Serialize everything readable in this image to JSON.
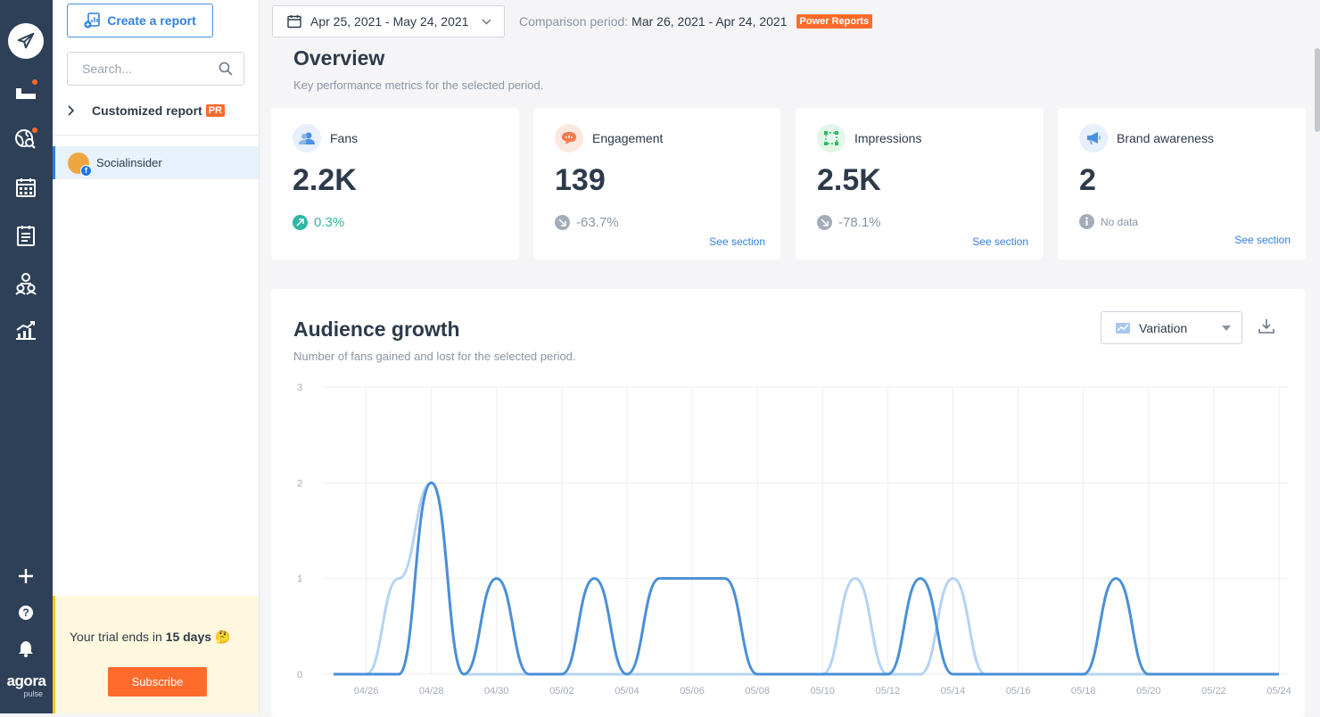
{
  "sidebar": {
    "create_label": "Create a report",
    "search_placeholder": "Search...",
    "customized_label": "Customized report",
    "pr_badge": "PR",
    "profile_name": "Socialinsider",
    "trial_prefix": "Your trial ends in ",
    "trial_days": "15 days",
    "trial_emoji": "🤔",
    "subscribe_label": "Subscribe"
  },
  "rail": {
    "icons": [
      "send-icon",
      "inbox-icon",
      "listening-icon",
      "calendar-icon",
      "reports-list-icon",
      "team-icon",
      "analytics-icon",
      "plus-icon",
      "help-icon",
      "bell-icon"
    ],
    "logo_top": "agora",
    "logo_bottom": "pulse"
  },
  "topbar": {
    "date_range": "Apr 25, 2021 - May 24, 2021",
    "comparison_label": "Comparison period:",
    "comparison_value": "Mar 26, 2021 - Apr 24, 2021",
    "power_badge": "Power Reports"
  },
  "overview": {
    "title": "Overview",
    "subtitle": "Key performance metrics for the selected period.",
    "cards": [
      {
        "label": "Fans",
        "value": "2.2K",
        "change": "0.3%",
        "trend": "up",
        "see": "",
        "color": "#4a8fe2"
      },
      {
        "label": "Engagement",
        "value": "139",
        "change": "-63.7%",
        "trend": "down",
        "see": "See section",
        "color": "#f5794a"
      },
      {
        "label": "Impressions",
        "value": "2.5K",
        "change": "-78.1%",
        "trend": "down",
        "see": "See section",
        "color": "#2fba5f"
      },
      {
        "label": "Brand awareness",
        "value": "2",
        "change": "No data",
        "trend": "none",
        "see": "See section",
        "color": "#4a8fe2"
      }
    ]
  },
  "audience": {
    "title": "Audience growth",
    "subtitle": "Number of fans gained and lost for the selected period.",
    "variation_label": "Variation"
  },
  "chart_data": {
    "type": "line",
    "title": "Audience growth",
    "ylim": [
      0,
      3
    ],
    "yticks": [
      "0",
      "1",
      "2",
      "3"
    ],
    "x_tick_labels": [
      "04/26",
      "04/28",
      "04/30",
      "05/02",
      "05/04",
      "05/06",
      "05/08",
      "05/10",
      "05/12",
      "05/14",
      "05/16",
      "05/18",
      "05/20",
      "05/22",
      "05/24"
    ],
    "x": [
      "04/25",
      "04/26",
      "04/27",
      "04/28",
      "04/29",
      "04/30",
      "05/01",
      "05/02",
      "05/03",
      "05/04",
      "05/05",
      "05/06",
      "05/07",
      "05/08",
      "05/09",
      "05/10",
      "05/11",
      "05/12",
      "05/13",
      "05/14",
      "05/15",
      "05/16",
      "05/17",
      "05/18",
      "05/19",
      "05/20",
      "05/21",
      "05/22",
      "05/23",
      "05/24"
    ],
    "series": [
      {
        "values": [
          0,
          0,
          0,
          2,
          0,
          1,
          0,
          0,
          1,
          0,
          1,
          1,
          1,
          0,
          0,
          0,
          0,
          0,
          1,
          0,
          0,
          0,
          0,
          0,
          1,
          0,
          0,
          0,
          0,
          0
        ],
        "color": "#4a8fd8"
      },
      {
        "values": [
          0,
          0,
          1,
          2,
          0,
          0,
          0,
          0,
          0,
          0,
          0,
          0,
          0,
          0,
          0,
          0,
          1,
          0,
          0,
          1,
          0,
          0,
          0,
          0,
          0,
          0,
          0,
          0,
          0,
          0
        ],
        "color": "#b5d3f2"
      }
    ],
    "grid": true
  }
}
